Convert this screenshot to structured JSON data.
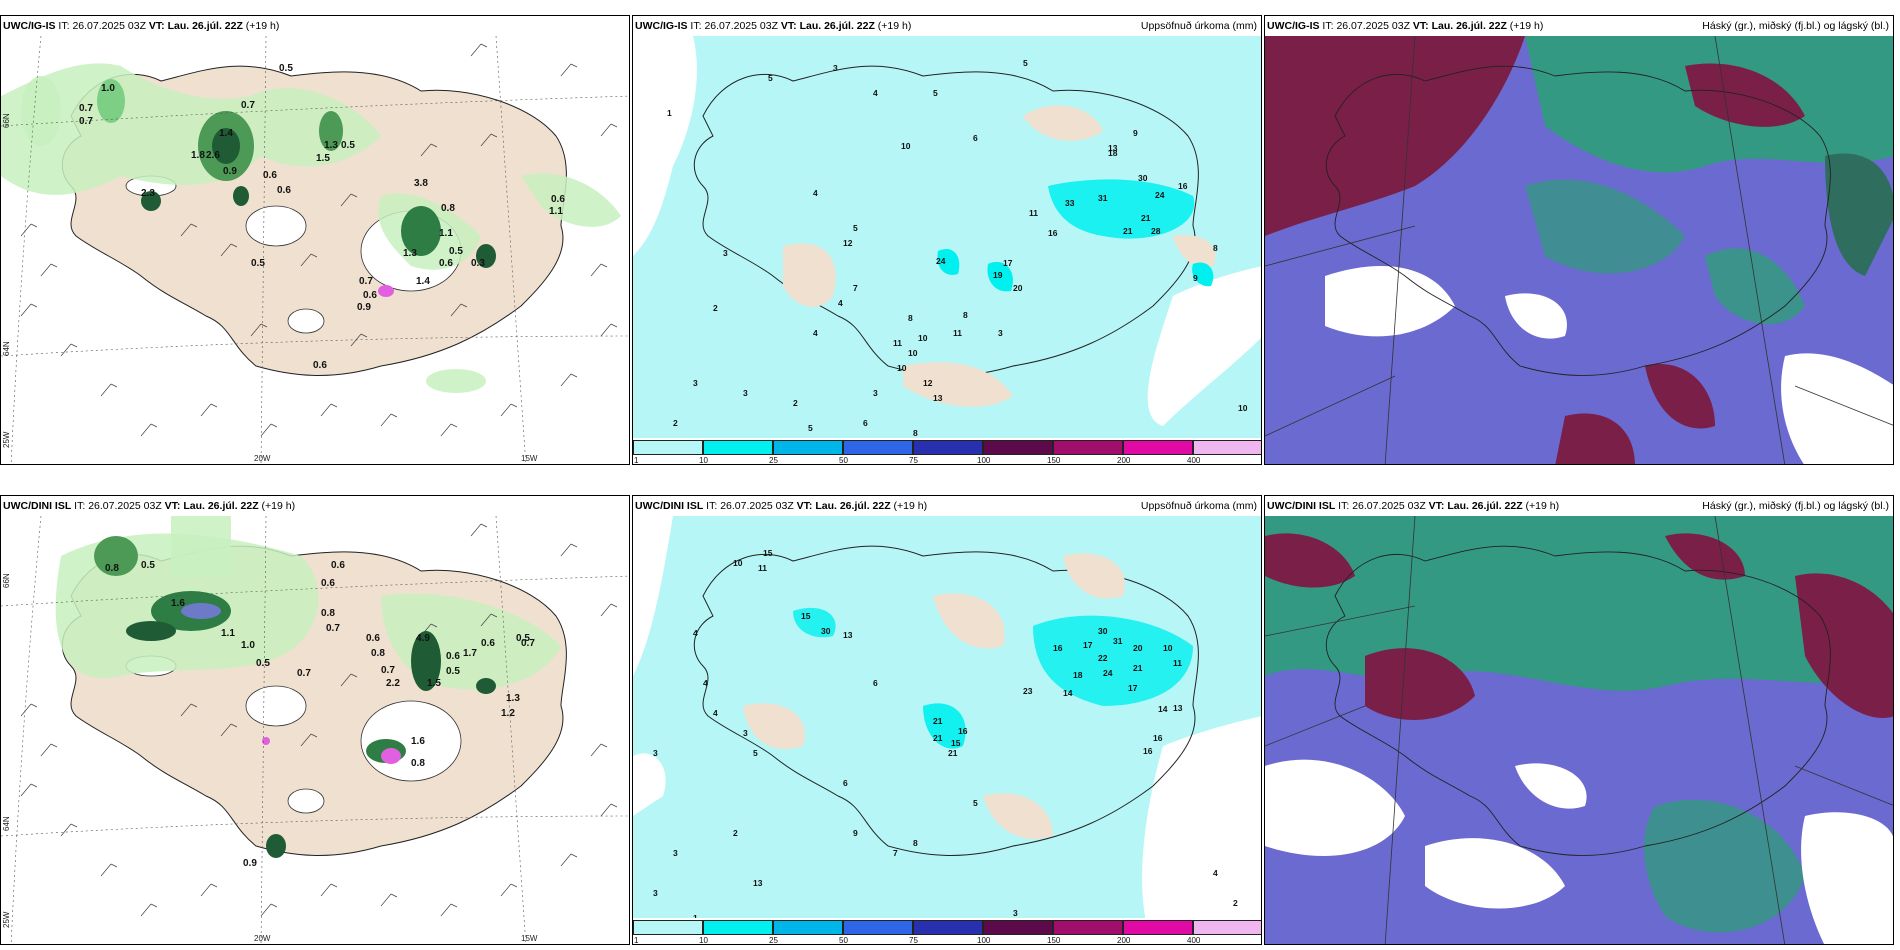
{
  "colors": {
    "land": "#efe0cf",
    "sea": "#ffffff",
    "precip_light": "#b7f6f6",
    "green_light": "#c8f0c0",
    "green_dark": "#1f5b35",
    "magenta": "#e060e0",
    "cloud_high": "#7a1f47",
    "cloud_mid": "#2f9e7a",
    "cloud_low": "#6a6ad0"
  },
  "panels": {
    "top_left": {
      "model": "UWC/IG-IS",
      "it_label": "IT:",
      "it_value": "26.07.2025 03Z",
      "vt_label": "VT:",
      "vt_value": "Lau. 26.júl. 22Z",
      "lead": "(+19 h)"
    },
    "top_mid": {
      "model": "UWC/IG-IS",
      "it_label": "IT:",
      "it_value": "26.07.2025 03Z",
      "vt_label": "VT:",
      "vt_value": "Lau. 26.júl. 22Z",
      "lead": "(+19 h)",
      "right_title": "Uppsöfnuð úrkoma (mm)"
    },
    "top_right": {
      "model": "UWC/IG-IS",
      "it_label": "IT:",
      "it_value": "26.07.2025 03Z",
      "vt_label": "VT:",
      "vt_value": "Lau. 26.júl. 22Z",
      "lead": "(+19 h)",
      "right_title": "Háský (gr.), miðský (fj.bl.) og lágský (bl.)"
    },
    "bottom_left": {
      "model": "UWC/DINI ISL",
      "it_label": "IT:",
      "it_value": "26.07.2025 03Z",
      "vt_label": "VT:",
      "vt_value": "Lau. 26.júl. 22Z",
      "lead": "(+19 h)"
    },
    "bottom_mid": {
      "model": "UWC/DINI ISL",
      "it_label": "IT:",
      "it_value": "26.07.2025 03Z",
      "vt_label": "VT:",
      "vt_value": "Lau. 26.júl. 22Z",
      "lead": "(+19 h)",
      "right_title": "Uppsöfnuð úrkoma (mm)"
    },
    "bottom_right": {
      "model": "UWC/DINI ISL",
      "it_label": "IT:",
      "it_value": "26.07.2025 03Z",
      "vt_label": "VT:",
      "vt_value": "Lau. 26.júl. 22Z",
      "lead": "(+19 h)",
      "right_title": "Háský (gr.), miðský (fj.bl.) og lágský (bl.)"
    }
  },
  "axis_labels": {
    "lon_20w": "20W",
    "lon_15w": "15W",
    "lat_66n": "66N",
    "lat_64n": "64N",
    "lon_25w": "25W"
  },
  "legend": {
    "ticks": [
      "1",
      "10",
      "25",
      "50",
      "75",
      "100",
      "150",
      "200",
      "400"
    ],
    "colors": [
      "#b7f6f6",
      "#00f0f0",
      "#00b6e8",
      "#2f66e8",
      "#2830b0",
      "#5c0a4a",
      "#a10f6c",
      "#e10aa4",
      "#f0b6f0"
    ]
  },
  "precip_top": [
    "1",
    "3",
    "5",
    "4",
    "5",
    "10",
    "5",
    "6",
    "3",
    "4",
    "7",
    "11",
    "10",
    "8",
    "3",
    "2",
    "3",
    "4",
    "5",
    "3",
    "6",
    "4",
    "8",
    "10",
    "8",
    "33",
    "31",
    "30",
    "24",
    "21",
    "28",
    "21",
    "16",
    "24",
    "17",
    "19",
    "20",
    "16",
    "11",
    "12",
    "10",
    "11",
    "13",
    "18",
    "13",
    "9",
    "8",
    "9",
    "10",
    "12",
    "5",
    "2",
    "2",
    "3"
  ],
  "precip_bottom": [
    "15",
    "10",
    "11",
    "15",
    "30",
    "13",
    "4",
    "4",
    "3",
    "6",
    "3",
    "5",
    "16",
    "17",
    "30",
    "31",
    "20",
    "22",
    "24",
    "18",
    "21",
    "17",
    "14",
    "23",
    "13",
    "14",
    "16",
    "16",
    "21",
    "16",
    "15",
    "21",
    "21",
    "10",
    "11",
    "4",
    "3",
    "6",
    "3",
    "2",
    "13",
    "7",
    "9",
    "5",
    "8",
    "1",
    "4",
    "2",
    "3"
  ],
  "wind_top": [
    "1.0",
    "0.7",
    "0.7",
    "0.5",
    "0.7",
    "1.8",
    "2.6",
    "1.4",
    "0.9",
    "0.6",
    "0.6",
    "1.3",
    "1.5",
    "0.5",
    "3.8",
    "0.8",
    "1.1",
    "1.3",
    "0.6",
    "0.5",
    "0.7",
    "0.6",
    "0.9",
    "0.3",
    "1.1",
    "0.6",
    "1.4",
    "2.3",
    "0.5",
    "0.6"
  ],
  "wind_bottom": [
    "0.8",
    "0.5",
    "1.6",
    "0.6",
    "0.6",
    "0.8",
    "0.7",
    "1.1",
    "1.0",
    "0.5",
    "0.7",
    "0.6",
    "0.8",
    "0.7",
    "4.9",
    "0.6",
    "0.5",
    "1.7",
    "0.5",
    "0.7",
    "2.2",
    "0.6",
    "1.5",
    "1.3",
    "1.2",
    "0.9",
    "1.6",
    "0.8"
  ]
}
